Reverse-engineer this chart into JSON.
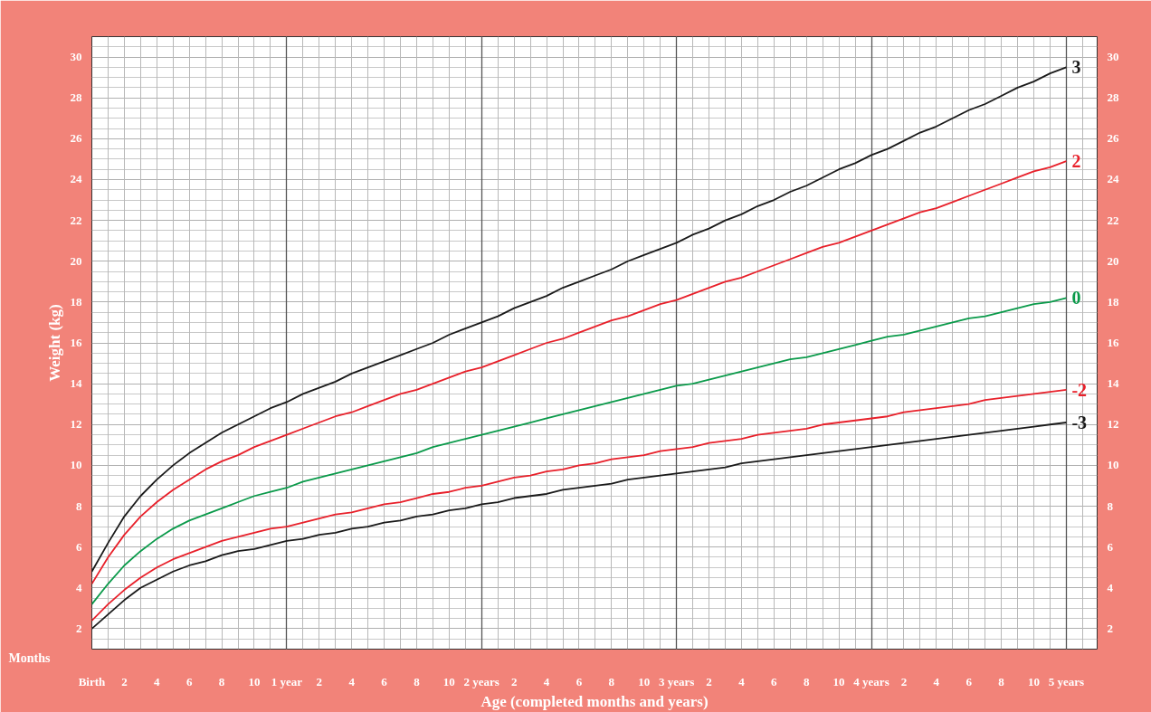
{
  "chart_data": {
    "type": "line",
    "xlabel": "Age (completed months and years)",
    "ylabel": "Weight (kg)",
    "annotations": [
      "Months"
    ],
    "categories": [
      "Birth",
      null,
      "2",
      null,
      "4",
      null,
      "6",
      null,
      "8",
      null,
      "10",
      null,
      "1 year",
      null,
      "2",
      null,
      "4",
      null,
      "6",
      null,
      "8",
      null,
      "10",
      null,
      "2 years",
      null,
      "2",
      null,
      "4",
      null,
      "6",
      null,
      "8",
      null,
      "10",
      null,
      "3 years",
      null,
      "2",
      null,
      "4",
      null,
      "6",
      null,
      "8",
      null,
      "10",
      null,
      "4 years",
      null,
      "2",
      null,
      "4",
      null,
      "6",
      null,
      "8",
      null,
      "10",
      null,
      "5 years"
    ],
    "series": [
      {
        "name": "3",
        "color": "#1a1a1a",
        "values": [
          4.8,
          6.2,
          7.5,
          8.5,
          9.3,
          10.0,
          10.6,
          11.1,
          11.6,
          12.0,
          12.4,
          12.8,
          13.1,
          13.5,
          13.8,
          14.1,
          14.5,
          14.8,
          15.1,
          15.4,
          15.7,
          16.0,
          16.4,
          16.7,
          17.0,
          17.3,
          17.7,
          18.0,
          18.3,
          18.7,
          19.0,
          19.3,
          19.6,
          20.0,
          20.3,
          20.6,
          20.9,
          21.3,
          21.6,
          22.0,
          22.3,
          22.7,
          23.0,
          23.4,
          23.7,
          24.1,
          24.5,
          24.8,
          25.2,
          25.5,
          25.9,
          26.3,
          26.6,
          27.0,
          27.4,
          27.7,
          28.1,
          28.5,
          28.8,
          29.2,
          29.5
        ]
      },
      {
        "name": "2",
        "color": "#e8202a",
        "values": [
          4.2,
          5.5,
          6.6,
          7.5,
          8.2,
          8.8,
          9.3,
          9.8,
          10.2,
          10.5,
          10.9,
          11.2,
          11.5,
          11.8,
          12.1,
          12.4,
          12.6,
          12.9,
          13.2,
          13.5,
          13.7,
          14.0,
          14.3,
          14.6,
          14.8,
          15.1,
          15.4,
          15.7,
          16.0,
          16.2,
          16.5,
          16.8,
          17.1,
          17.3,
          17.6,
          17.9,
          18.1,
          18.4,
          18.7,
          19.0,
          19.2,
          19.5,
          19.8,
          20.1,
          20.4,
          20.7,
          20.9,
          21.2,
          21.5,
          21.8,
          22.1,
          22.4,
          22.6,
          22.9,
          23.2,
          23.5,
          23.8,
          24.1,
          24.4,
          24.6,
          24.9
        ]
      },
      {
        "name": "0",
        "color": "#0a9a4a",
        "values": [
          3.2,
          4.2,
          5.1,
          5.8,
          6.4,
          6.9,
          7.3,
          7.6,
          7.9,
          8.2,
          8.5,
          8.7,
          8.9,
          9.2,
          9.4,
          9.6,
          9.8,
          10.0,
          10.2,
          10.4,
          10.6,
          10.9,
          11.1,
          11.3,
          11.5,
          11.7,
          11.9,
          12.1,
          12.3,
          12.5,
          12.7,
          12.9,
          13.1,
          13.3,
          13.5,
          13.7,
          13.9,
          14.0,
          14.2,
          14.4,
          14.6,
          14.8,
          15.0,
          15.2,
          15.3,
          15.5,
          15.7,
          15.9,
          16.1,
          16.3,
          16.4,
          16.6,
          16.8,
          17.0,
          17.2,
          17.3,
          17.5,
          17.7,
          17.9,
          18.0,
          18.2
        ]
      },
      {
        "name": "-2",
        "color": "#e8202a",
        "values": [
          2.4,
          3.2,
          3.9,
          4.5,
          5.0,
          5.4,
          5.7,
          6.0,
          6.3,
          6.5,
          6.7,
          6.9,
          7.0,
          7.2,
          7.4,
          7.6,
          7.7,
          7.9,
          8.1,
          8.2,
          8.4,
          8.6,
          8.7,
          8.9,
          9.0,
          9.2,
          9.4,
          9.5,
          9.7,
          9.8,
          10.0,
          10.1,
          10.3,
          10.4,
          10.5,
          10.7,
          10.8,
          10.9,
          11.1,
          11.2,
          11.3,
          11.5,
          11.6,
          11.7,
          11.8,
          12.0,
          12.1,
          12.2,
          12.3,
          12.4,
          12.6,
          12.7,
          12.8,
          12.9,
          13.0,
          13.2,
          13.3,
          13.4,
          13.5,
          13.6,
          13.7
        ]
      },
      {
        "name": "-3",
        "color": "#1a1a1a",
        "values": [
          2.0,
          2.7,
          3.4,
          4.0,
          4.4,
          4.8,
          5.1,
          5.3,
          5.6,
          5.8,
          5.9,
          6.1,
          6.3,
          6.4,
          6.6,
          6.7,
          6.9,
          7.0,
          7.2,
          7.3,
          7.5,
          7.6,
          7.8,
          7.9,
          8.1,
          8.2,
          8.4,
          8.5,
          8.6,
          8.8,
          8.9,
          9.0,
          9.1,
          9.3,
          9.4,
          9.5,
          9.6,
          9.7,
          9.8,
          9.9,
          10.1,
          10.2,
          10.3,
          10.4,
          10.5,
          10.6,
          10.7,
          10.8,
          10.9,
          11.0,
          11.1,
          11.2,
          11.3,
          11.4,
          11.5,
          11.6,
          11.7,
          11.8,
          11.9,
          12.0,
          12.1
        ]
      }
    ],
    "ylim": [
      1,
      31
    ],
    "y2lim": [
      1,
      31
    ],
    "yticks": [
      2,
      4,
      6,
      8,
      10,
      12,
      14,
      16,
      18,
      20,
      22,
      24,
      26,
      28,
      30
    ],
    "y2ticks": [
      2,
      4,
      6,
      8,
      10,
      12,
      14,
      16,
      18,
      20,
      22,
      24,
      26,
      28,
      30
    ],
    "grid": true,
    "marker": "none",
    "line_style": "solid"
  }
}
